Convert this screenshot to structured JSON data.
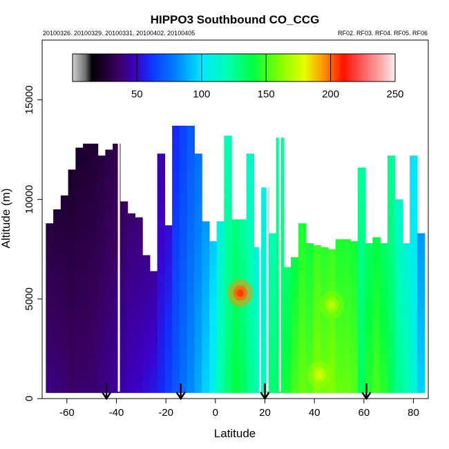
{
  "chart_data": {
    "type": "heatmap",
    "title": "HIPPO3 Southbound CO_CCG",
    "subtitle_left": "20100326. 20100329. 20100331. 20100402. 20100405",
    "subtitle_right": "RF02. RF03. RF04. RF05. RF06",
    "xlabel": "Latitude",
    "ylabel": "Altitude (m)",
    "xlim": [
      -70,
      86
    ],
    "ylim": [
      0,
      18000
    ],
    "x_ticks": [
      -60,
      -40,
      -20,
      0,
      20,
      40,
      60,
      80
    ],
    "y_ticks": [
      0,
      5000,
      10000,
      15000
    ],
    "colorbar": {
      "range": [
        0,
        250
      ],
      "ticks": [
        50,
        100,
        150,
        200,
        250
      ],
      "stops": [
        {
          "v": 0,
          "c": "#d0d0d0"
        },
        {
          "v": 10,
          "c": "#707070"
        },
        {
          "v": 15,
          "c": "#000000"
        },
        {
          "v": 35,
          "c": "#3a0060"
        },
        {
          "v": 50,
          "c": "#3c00c8"
        },
        {
          "v": 60,
          "c": "#1030ff"
        },
        {
          "v": 80,
          "c": "#0080ff"
        },
        {
          "v": 100,
          "c": "#00e8ff"
        },
        {
          "v": 120,
          "c": "#00ffb0"
        },
        {
          "v": 140,
          "c": "#00ff40"
        },
        {
          "v": 160,
          "c": "#80ff00"
        },
        {
          "v": 180,
          "c": "#e8ff00"
        },
        {
          "v": 195,
          "c": "#ff9000"
        },
        {
          "v": 210,
          "c": "#ff1000"
        },
        {
          "v": 225,
          "c": "#ff6060"
        },
        {
          "v": 240,
          "c": "#ffb0b0"
        },
        {
          "v": 250,
          "c": "#fff0f0"
        }
      ]
    },
    "series": [
      {
        "lat": -67,
        "top": 8800,
        "value": 34
      },
      {
        "lat": -64,
        "top": 9500,
        "value": 33
      },
      {
        "lat": -61,
        "top": 10200,
        "value": 32
      },
      {
        "lat": -58,
        "top": 11500,
        "value": 30
      },
      {
        "lat": -55,
        "top": 12600,
        "value": 31
      },
      {
        "lat": -52,
        "top": 12800,
        "value": 31
      },
      {
        "lat": -49,
        "top": 12800,
        "value": 32
      },
      {
        "lat": -46,
        "top": 12200,
        "value": 34
      },
      {
        "lat": -43,
        "top": 12500,
        "value": 36
      },
      {
        "lat": -40,
        "top": 12800,
        "value": 37
      },
      {
        "lat": -37,
        "top": 9900,
        "value": 40
      },
      {
        "lat": -34,
        "top": 9300,
        "value": 43
      },
      {
        "lat": -31,
        "top": 9100,
        "value": 44
      },
      {
        "lat": -28,
        "top": 7200,
        "value": 47
      },
      {
        "lat": -25,
        "top": 6400,
        "value": 49
      },
      {
        "lat": -22,
        "top": 12300,
        "value": 52
      },
      {
        "lat": -19,
        "top": 8700,
        "value": 58
      },
      {
        "lat": -16,
        "top": 13700,
        "value": 64
      },
      {
        "lat": -13,
        "top": 13700,
        "value": 70
      },
      {
        "lat": -10,
        "top": 13700,
        "value": 76
      },
      {
        "lat": -7,
        "top": 12300,
        "value": 82
      },
      {
        "lat": -4,
        "top": 8900,
        "value": 90
      },
      {
        "lat": -1,
        "top": 7900,
        "value": 100
      },
      {
        "lat": 2,
        "top": 8900,
        "value": 115
      },
      {
        "lat": 5,
        "top": 13200,
        "value": 125
      },
      {
        "lat": 8,
        "top": 9000,
        "value": 135
      },
      {
        "lat": 11,
        "top": 9000,
        "value": 130
      },
      {
        "lat": 14,
        "top": 12300,
        "value": 120
      },
      {
        "lat": 17,
        "top": 7600,
        "value": 115
      },
      {
        "lat": 20,
        "top": 10600,
        "value": 112
      },
      {
        "lat": 23,
        "top": 8300,
        "value": 125
      },
      {
        "lat": 26,
        "top": 13100,
        "value": 130
      },
      {
        "lat": 29,
        "top": 6600,
        "value": 138
      },
      {
        "lat": 32,
        "top": 7100,
        "value": 145
      },
      {
        "lat": 35,
        "top": 8800,
        "value": 150
      },
      {
        "lat": 38,
        "top": 7800,
        "value": 148
      },
      {
        "lat": 41,
        "top": 7700,
        "value": 155
      },
      {
        "lat": 44,
        "top": 7600,
        "value": 152
      },
      {
        "lat": 47,
        "top": 7500,
        "value": 155
      },
      {
        "lat": 50,
        "top": 8000,
        "value": 150
      },
      {
        "lat": 53,
        "top": 8000,
        "value": 150
      },
      {
        "lat": 56,
        "top": 7900,
        "value": 148
      },
      {
        "lat": 59,
        "top": 11600,
        "value": 130
      },
      {
        "lat": 62,
        "top": 7800,
        "value": 140
      },
      {
        "lat": 65,
        "top": 8100,
        "value": 145
      },
      {
        "lat": 68,
        "top": 7800,
        "value": 140
      },
      {
        "lat": 71,
        "top": 12200,
        "value": 130
      },
      {
        "lat": 74,
        "top": 10000,
        "value": 120
      },
      {
        "lat": 77,
        "top": 7800,
        "value": 115
      },
      {
        "lat": 80,
        "top": 12200,
        "value": 105
      },
      {
        "lat": 83,
        "top": 8300,
        "value": 90
      }
    ],
    "hotspots": [
      {
        "lat": 10,
        "alt": 5300,
        "value": 205
      },
      {
        "lat": 42,
        "alt": 1200,
        "value": 175
      },
      {
        "lat": 47,
        "alt": 4700,
        "value": 170
      }
    ],
    "arrows_lat": [
      -44,
      -14,
      20,
      61
    ],
    "gaps_lat": [
      -39,
      18,
      21,
      26
    ]
  }
}
